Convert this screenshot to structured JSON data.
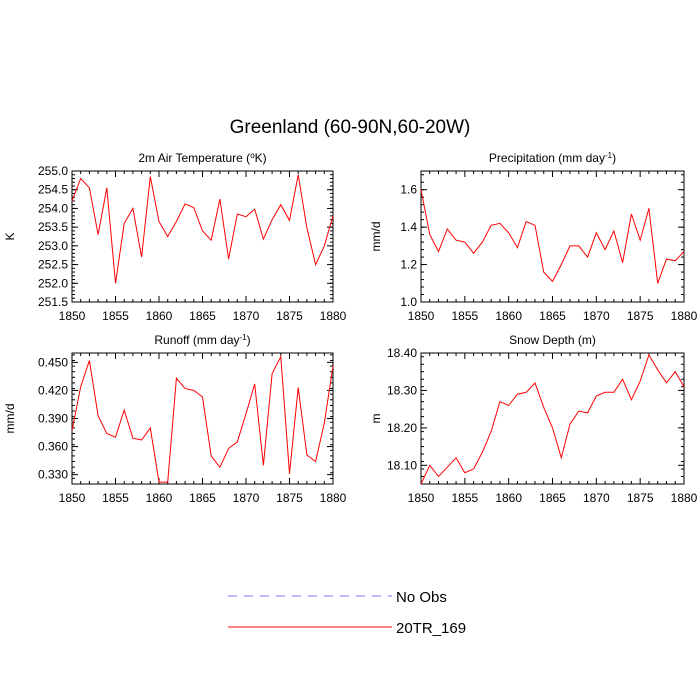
{
  "title": "Greenland (60-90N,60-20W)",
  "legend": [
    {
      "label": "No Obs",
      "color": "#7777ff",
      "dash": true
    },
    {
      "label": "20TR_169",
      "color": "#ff0000",
      "dash": false
    }
  ],
  "chart_data": [
    {
      "type": "line",
      "title": "2m Air Temperature (",
      "title_sup": "o",
      "title_tail": "K)",
      "ylabel": "K",
      "xlim": [
        1850,
        1880
      ],
      "ylim": [
        251.5,
        255.0
      ],
      "xticks": [
        "1850",
        "1855",
        "1860",
        "1865",
        "1870",
        "1875",
        "1880"
      ],
      "yticks": [
        "251.5",
        "252.0",
        "252.5",
        "253.0",
        "253.5",
        "254.0",
        "254.5",
        "255.0"
      ],
      "series": [
        {
          "name": "20TR_169",
          "color": "#ff0000",
          "x": [
            1850,
            1851,
            1852,
            1853,
            1854,
            1855,
            1856,
            1857,
            1858,
            1859,
            1860,
            1861,
            1862,
            1863,
            1864,
            1865,
            1866,
            1867,
            1868,
            1869,
            1870,
            1871,
            1872,
            1873,
            1874,
            1875,
            1876,
            1877,
            1878,
            1879,
            1880
          ],
          "values": [
            254.2,
            254.8,
            254.55,
            253.3,
            254.55,
            252.0,
            253.6,
            254.0,
            252.7,
            254.85,
            253.65,
            253.25,
            253.65,
            254.12,
            254.02,
            253.4,
            253.15,
            254.25,
            252.65,
            253.85,
            253.78,
            253.98,
            253.18,
            253.7,
            254.1,
            253.68,
            254.9,
            253.48,
            252.5,
            253.0,
            253.8
          ]
        }
      ]
    },
    {
      "type": "line",
      "title": "Precipitation (mm day",
      "title_sup": "-1",
      "title_tail": ")",
      "ylabel": "mm/d",
      "xlim": [
        1850,
        1880
      ],
      "ylim": [
        1.0,
        1.7
      ],
      "xticks": [
        "1850",
        "1855",
        "1860",
        "1865",
        "1870",
        "1875",
        "1880"
      ],
      "yticks": [
        "1.0",
        "1.2",
        "1.4",
        "1.6"
      ],
      "series": [
        {
          "name": "20TR_169",
          "color": "#ff0000",
          "x": [
            1850,
            1851,
            1852,
            1853,
            1854,
            1855,
            1856,
            1857,
            1858,
            1859,
            1860,
            1861,
            1862,
            1863,
            1864,
            1865,
            1866,
            1867,
            1868,
            1869,
            1870,
            1871,
            1872,
            1873,
            1874,
            1875,
            1876,
            1877,
            1878,
            1879,
            1880
          ],
          "values": [
            1.6,
            1.36,
            1.27,
            1.39,
            1.33,
            1.32,
            1.26,
            1.32,
            1.41,
            1.42,
            1.37,
            1.29,
            1.43,
            1.41,
            1.16,
            1.11,
            1.2,
            1.3,
            1.3,
            1.24,
            1.37,
            1.28,
            1.38,
            1.21,
            1.47,
            1.33,
            1.5,
            1.1,
            1.23,
            1.22,
            1.27
          ]
        }
      ]
    },
    {
      "type": "line",
      "title": "Runoff (mm day",
      "title_sup": "-1",
      "title_tail": ")",
      "ylabel": "mm/d",
      "xlim": [
        1850,
        1880
      ],
      "ylim": [
        0.32,
        0.46
      ],
      "xticks": [
        "1850",
        "1855",
        "1860",
        "1865",
        "1870",
        "1875",
        "1880"
      ],
      "yticks": [
        "0.330",
        "0.360",
        "0.390",
        "0.420",
        "0.450"
      ],
      "series": [
        {
          "name": "20TR_169",
          "color": "#ff0000",
          "x": [
            1850,
            1851,
            1852,
            1853,
            1854,
            1855,
            1856,
            1857,
            1858,
            1859,
            1860,
            1861,
            1862,
            1863,
            1864,
            1865,
            1866,
            1867,
            1868,
            1869,
            1870,
            1871,
            1872,
            1873,
            1874,
            1875,
            1876,
            1877,
            1878,
            1879,
            1880
          ],
          "values": [
            0.377,
            0.424,
            0.452,
            0.393,
            0.374,
            0.37,
            0.399,
            0.369,
            0.367,
            0.38,
            0.322,
            0.322,
            0.433,
            0.422,
            0.42,
            0.413,
            0.35,
            0.338,
            0.358,
            0.365,
            0.395,
            0.427,
            0.34,
            0.438,
            0.456,
            0.331,
            0.423,
            0.351,
            0.344,
            0.385,
            0.446
          ]
        }
      ]
    },
    {
      "type": "line",
      "title": "Snow Depth (m)",
      "title_sup": "",
      "title_tail": "",
      "ylabel": "m",
      "xlim": [
        1850,
        1880
      ],
      "ylim": [
        18.05,
        18.4
      ],
      "xticks": [
        "1850",
        "1855",
        "1860",
        "1865",
        "1870",
        "1875",
        "1880"
      ],
      "yticks": [
        "18.10",
        "18.20",
        "18.30",
        "18.40"
      ],
      "series": [
        {
          "name": "20TR_169",
          "color": "#ff0000",
          "x": [
            1850,
            1851,
            1852,
            1853,
            1854,
            1855,
            1856,
            1857,
            1858,
            1859,
            1860,
            1861,
            1862,
            1863,
            1864,
            1865,
            1866,
            1867,
            1868,
            1869,
            1870,
            1871,
            1872,
            1873,
            1874,
            1875,
            1876,
            1877,
            1878,
            1879,
            1880
          ],
          "values": [
            18.05,
            18.1,
            18.07,
            18.095,
            18.12,
            18.08,
            18.09,
            18.135,
            18.19,
            18.27,
            18.26,
            18.29,
            18.295,
            18.32,
            18.255,
            18.2,
            18.12,
            18.21,
            18.245,
            18.24,
            18.285,
            18.295,
            18.295,
            18.33,
            18.275,
            18.325,
            18.395,
            18.355,
            18.32,
            18.35,
            18.31
          ]
        }
      ]
    }
  ]
}
